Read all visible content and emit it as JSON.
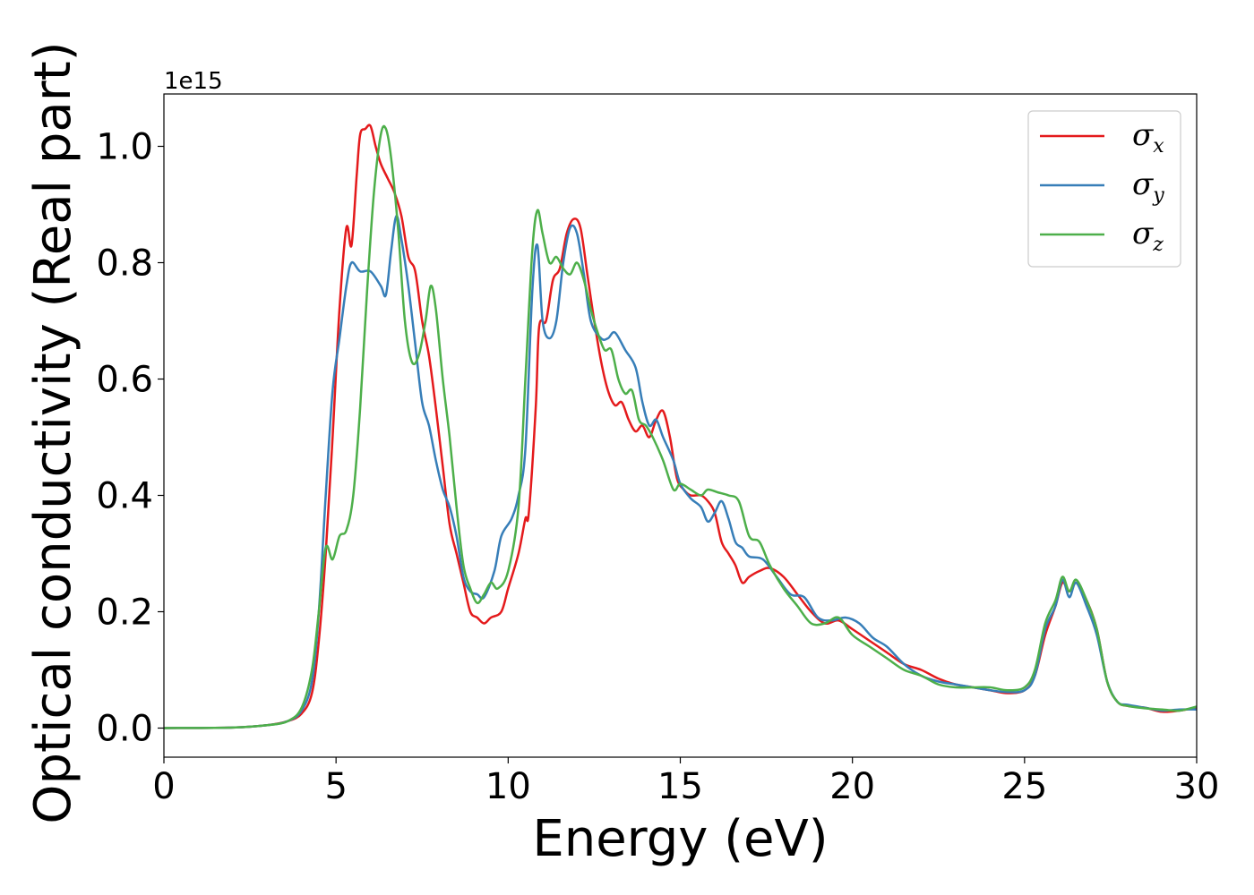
{
  "chart_data": {
    "type": "line",
    "title": "",
    "xlabel": "Energy (eV)",
    "ylabel": "Optical conductivity (Real part)",
    "offset_text": "1e15",
    "xlim": [
      0,
      30
    ],
    "ylim": [
      -0.05,
      1.09
    ],
    "xticks": [
      0,
      5,
      10,
      15,
      20,
      25,
      30
    ],
    "xtick_labels": [
      "0",
      "5",
      "10",
      "15",
      "20",
      "25",
      "30"
    ],
    "yticks": [
      0.0,
      0.2,
      0.4,
      0.6,
      0.8,
      1.0
    ],
    "ytick_labels": [
      "0.0",
      "0.2",
      "0.4",
      "0.6",
      "0.8",
      "1.0"
    ],
    "grid": false,
    "legend_position": "top-right",
    "series": [
      {
        "name": "σx",
        "base": "σ",
        "subscript": "x",
        "color": "#e41a1c",
        "points": [
          [
            0,
            0.0
          ],
          [
            2,
            0.001
          ],
          [
            3,
            0.005
          ],
          [
            3.6,
            0.012
          ],
          [
            4,
            0.025
          ],
          [
            4.3,
            0.06
          ],
          [
            4.5,
            0.15
          ],
          [
            4.7,
            0.3
          ],
          [
            4.9,
            0.5
          ],
          [
            5.1,
            0.72
          ],
          [
            5.3,
            0.86
          ],
          [
            5.45,
            0.83
          ],
          [
            5.6,
            0.95
          ],
          [
            5.7,
            1.02
          ],
          [
            5.85,
            1.03
          ],
          [
            6.0,
            1.035
          ],
          [
            6.15,
            1.0
          ],
          [
            6.3,
            0.97
          ],
          [
            6.5,
            0.945
          ],
          [
            6.7,
            0.92
          ],
          [
            6.9,
            0.88
          ],
          [
            7.1,
            0.81
          ],
          [
            7.3,
            0.785
          ],
          [
            7.5,
            0.7
          ],
          [
            7.7,
            0.64
          ],
          [
            7.9,
            0.55
          ],
          [
            8.1,
            0.45
          ],
          [
            8.3,
            0.35
          ],
          [
            8.5,
            0.3
          ],
          [
            8.7,
            0.25
          ],
          [
            8.9,
            0.2
          ],
          [
            9.1,
            0.19
          ],
          [
            9.3,
            0.18
          ],
          [
            9.5,
            0.19
          ],
          [
            9.8,
            0.2
          ],
          [
            10.0,
            0.24
          ],
          [
            10.3,
            0.3
          ],
          [
            10.5,
            0.36
          ],
          [
            10.6,
            0.37
          ],
          [
            10.8,
            0.55
          ],
          [
            10.9,
            0.69
          ],
          [
            11.1,
            0.7
          ],
          [
            11.3,
            0.77
          ],
          [
            11.5,
            0.79
          ],
          [
            11.7,
            0.85
          ],
          [
            11.9,
            0.875
          ],
          [
            12.1,
            0.86
          ],
          [
            12.3,
            0.78
          ],
          [
            12.5,
            0.7
          ],
          [
            12.7,
            0.63
          ],
          [
            12.9,
            0.58
          ],
          [
            13.1,
            0.555
          ],
          [
            13.3,
            0.56
          ],
          [
            13.5,
            0.53
          ],
          [
            13.7,
            0.51
          ],
          [
            13.9,
            0.52
          ],
          [
            14.1,
            0.5
          ],
          [
            14.3,
            0.53
          ],
          [
            14.5,
            0.545
          ],
          [
            14.7,
            0.5
          ],
          [
            14.9,
            0.43
          ],
          [
            15.1,
            0.41
          ],
          [
            15.3,
            0.4
          ],
          [
            15.6,
            0.4
          ],
          [
            15.8,
            0.39
          ],
          [
            16.0,
            0.37
          ],
          [
            16.2,
            0.32
          ],
          [
            16.4,
            0.3
          ],
          [
            16.6,
            0.28
          ],
          [
            16.8,
            0.25
          ],
          [
            17.0,
            0.26
          ],
          [
            17.3,
            0.27
          ],
          [
            17.6,
            0.275
          ],
          [
            18.0,
            0.26
          ],
          [
            18.4,
            0.23
          ],
          [
            18.8,
            0.2
          ],
          [
            19.2,
            0.18
          ],
          [
            19.6,
            0.185
          ],
          [
            20.0,
            0.17
          ],
          [
            20.5,
            0.15
          ],
          [
            21.0,
            0.13
          ],
          [
            21.5,
            0.11
          ],
          [
            22.0,
            0.1
          ],
          [
            22.5,
            0.085
          ],
          [
            23.0,
            0.075
          ],
          [
            23.5,
            0.07
          ],
          [
            24.0,
            0.065
          ],
          [
            24.5,
            0.06
          ],
          [
            25.0,
            0.065
          ],
          [
            25.3,
            0.09
          ],
          [
            25.6,
            0.16
          ],
          [
            25.9,
            0.21
          ],
          [
            26.1,
            0.25
          ],
          [
            26.3,
            0.235
          ],
          [
            26.5,
            0.25
          ],
          [
            26.8,
            0.22
          ],
          [
            27.1,
            0.17
          ],
          [
            27.4,
            0.08
          ],
          [
            27.7,
            0.045
          ],
          [
            28.0,
            0.038
          ],
          [
            28.5,
            0.035
          ],
          [
            29.0,
            0.028
          ],
          [
            29.5,
            0.03
          ],
          [
            30.0,
            0.035
          ]
        ]
      },
      {
        "name": "σy",
        "base": "σ",
        "subscript": "y",
        "color": "#377eb8",
        "points": [
          [
            0,
            0.0
          ],
          [
            2,
            0.001
          ],
          [
            3,
            0.005
          ],
          [
            3.6,
            0.012
          ],
          [
            4,
            0.03
          ],
          [
            4.3,
            0.08
          ],
          [
            4.5,
            0.2
          ],
          [
            4.7,
            0.4
          ],
          [
            4.9,
            0.58
          ],
          [
            5.1,
            0.67
          ],
          [
            5.3,
            0.76
          ],
          [
            5.45,
            0.8
          ],
          [
            5.7,
            0.785
          ],
          [
            6.0,
            0.785
          ],
          [
            6.3,
            0.76
          ],
          [
            6.45,
            0.745
          ],
          [
            6.6,
            0.82
          ],
          [
            6.75,
            0.88
          ],
          [
            6.9,
            0.84
          ],
          [
            7.1,
            0.76
          ],
          [
            7.3,
            0.66
          ],
          [
            7.5,
            0.56
          ],
          [
            7.7,
            0.52
          ],
          [
            7.9,
            0.46
          ],
          [
            8.1,
            0.41
          ],
          [
            8.3,
            0.38
          ],
          [
            8.5,
            0.33
          ],
          [
            8.7,
            0.26
          ],
          [
            8.9,
            0.235
          ],
          [
            9.1,
            0.23
          ],
          [
            9.3,
            0.225
          ],
          [
            9.6,
            0.27
          ],
          [
            9.8,
            0.33
          ],
          [
            10.1,
            0.36
          ],
          [
            10.3,
            0.4
          ],
          [
            10.5,
            0.48
          ],
          [
            10.7,
            0.75
          ],
          [
            10.85,
            0.83
          ],
          [
            11.0,
            0.7
          ],
          [
            11.2,
            0.67
          ],
          [
            11.4,
            0.7
          ],
          [
            11.6,
            0.8
          ],
          [
            11.8,
            0.86
          ],
          [
            12.0,
            0.85
          ],
          [
            12.2,
            0.78
          ],
          [
            12.4,
            0.7
          ],
          [
            12.7,
            0.67
          ],
          [
            12.9,
            0.67
          ],
          [
            13.1,
            0.68
          ],
          [
            13.4,
            0.65
          ],
          [
            13.7,
            0.62
          ],
          [
            13.9,
            0.56
          ],
          [
            14.1,
            0.52
          ],
          [
            14.3,
            0.53
          ],
          [
            14.5,
            0.5
          ],
          [
            14.8,
            0.46
          ],
          [
            15.0,
            0.42
          ],
          [
            15.3,
            0.395
          ],
          [
            15.6,
            0.38
          ],
          [
            15.8,
            0.355
          ],
          [
            16.0,
            0.37
          ],
          [
            16.2,
            0.39
          ],
          [
            16.4,
            0.36
          ],
          [
            16.6,
            0.32
          ],
          [
            16.8,
            0.31
          ],
          [
            17.0,
            0.295
          ],
          [
            17.4,
            0.29
          ],
          [
            17.8,
            0.26
          ],
          [
            18.2,
            0.23
          ],
          [
            18.6,
            0.225
          ],
          [
            19.0,
            0.19
          ],
          [
            19.4,
            0.185
          ],
          [
            19.8,
            0.19
          ],
          [
            20.2,
            0.18
          ],
          [
            20.6,
            0.155
          ],
          [
            21.0,
            0.14
          ],
          [
            21.5,
            0.11
          ],
          [
            22.0,
            0.09
          ],
          [
            22.5,
            0.08
          ],
          [
            23.0,
            0.075
          ],
          [
            23.5,
            0.07
          ],
          [
            24.0,
            0.065
          ],
          [
            24.5,
            0.062
          ],
          [
            25.0,
            0.065
          ],
          [
            25.3,
            0.09
          ],
          [
            25.6,
            0.17
          ],
          [
            25.9,
            0.21
          ],
          [
            26.1,
            0.255
          ],
          [
            26.3,
            0.225
          ],
          [
            26.5,
            0.25
          ],
          [
            26.8,
            0.21
          ],
          [
            27.1,
            0.16
          ],
          [
            27.4,
            0.08
          ],
          [
            27.7,
            0.045
          ],
          [
            28.0,
            0.04
          ],
          [
            28.5,
            0.035
          ],
          [
            29.0,
            0.03
          ],
          [
            29.5,
            0.032
          ],
          [
            30.0,
            0.032
          ]
        ]
      },
      {
        "name": "σz",
        "base": "σ",
        "subscript": "z",
        "color": "#4daf4a",
        "points": [
          [
            0,
            0.0
          ],
          [
            2,
            0.001
          ],
          [
            3,
            0.005
          ],
          [
            3.6,
            0.012
          ],
          [
            4,
            0.035
          ],
          [
            4.3,
            0.1
          ],
          [
            4.5,
            0.2
          ],
          [
            4.7,
            0.31
          ],
          [
            4.9,
            0.29
          ],
          [
            5.1,
            0.33
          ],
          [
            5.3,
            0.34
          ],
          [
            5.5,
            0.4
          ],
          [
            5.7,
            0.55
          ],
          [
            5.9,
            0.75
          ],
          [
            6.1,
            0.92
          ],
          [
            6.3,
            1.02
          ],
          [
            6.45,
            1.03
          ],
          [
            6.6,
            0.98
          ],
          [
            6.8,
            0.86
          ],
          [
            7.0,
            0.7
          ],
          [
            7.2,
            0.63
          ],
          [
            7.4,
            0.64
          ],
          [
            7.6,
            0.7
          ],
          [
            7.75,
            0.76
          ],
          [
            7.9,
            0.72
          ],
          [
            8.1,
            0.6
          ],
          [
            8.3,
            0.5
          ],
          [
            8.5,
            0.38
          ],
          [
            8.7,
            0.28
          ],
          [
            8.9,
            0.24
          ],
          [
            9.1,
            0.215
          ],
          [
            9.3,
            0.23
          ],
          [
            9.5,
            0.25
          ],
          [
            9.7,
            0.24
          ],
          [
            10.0,
            0.27
          ],
          [
            10.3,
            0.38
          ],
          [
            10.5,
            0.6
          ],
          [
            10.7,
            0.82
          ],
          [
            10.85,
            0.89
          ],
          [
            11.0,
            0.85
          ],
          [
            11.2,
            0.8
          ],
          [
            11.4,
            0.81
          ],
          [
            11.6,
            0.79
          ],
          [
            11.8,
            0.78
          ],
          [
            12.0,
            0.8
          ],
          [
            12.2,
            0.77
          ],
          [
            12.4,
            0.72
          ],
          [
            12.6,
            0.68
          ],
          [
            12.8,
            0.65
          ],
          [
            13.0,
            0.65
          ],
          [
            13.2,
            0.6
          ],
          [
            13.4,
            0.575
          ],
          [
            13.6,
            0.58
          ],
          [
            13.8,
            0.53
          ],
          [
            14.0,
            0.52
          ],
          [
            14.2,
            0.5
          ],
          [
            14.5,
            0.46
          ],
          [
            14.8,
            0.41
          ],
          [
            15.0,
            0.42
          ],
          [
            15.3,
            0.41
          ],
          [
            15.6,
            0.4
          ],
          [
            15.8,
            0.41
          ],
          [
            16.1,
            0.405
          ],
          [
            16.4,
            0.4
          ],
          [
            16.7,
            0.39
          ],
          [
            17.0,
            0.33
          ],
          [
            17.3,
            0.32
          ],
          [
            17.6,
            0.28
          ],
          [
            18.0,
            0.24
          ],
          [
            18.4,
            0.21
          ],
          [
            18.8,
            0.18
          ],
          [
            19.2,
            0.18
          ],
          [
            19.6,
            0.19
          ],
          [
            20.0,
            0.16
          ],
          [
            20.5,
            0.14
          ],
          [
            21.0,
            0.12
          ],
          [
            21.5,
            0.1
          ],
          [
            22.0,
            0.09
          ],
          [
            22.5,
            0.075
          ],
          [
            23.0,
            0.07
          ],
          [
            23.5,
            0.07
          ],
          [
            24.0,
            0.07
          ],
          [
            24.5,
            0.065
          ],
          [
            25.0,
            0.07
          ],
          [
            25.3,
            0.1
          ],
          [
            25.6,
            0.18
          ],
          [
            25.9,
            0.22
          ],
          [
            26.1,
            0.26
          ],
          [
            26.3,
            0.235
          ],
          [
            26.5,
            0.255
          ],
          [
            26.8,
            0.22
          ],
          [
            27.1,
            0.17
          ],
          [
            27.4,
            0.08
          ],
          [
            27.7,
            0.045
          ],
          [
            28.0,
            0.038
          ],
          [
            28.5,
            0.034
          ],
          [
            29.0,
            0.032
          ],
          [
            29.5,
            0.03
          ],
          [
            30.0,
            0.037
          ]
        ]
      }
    ]
  }
}
